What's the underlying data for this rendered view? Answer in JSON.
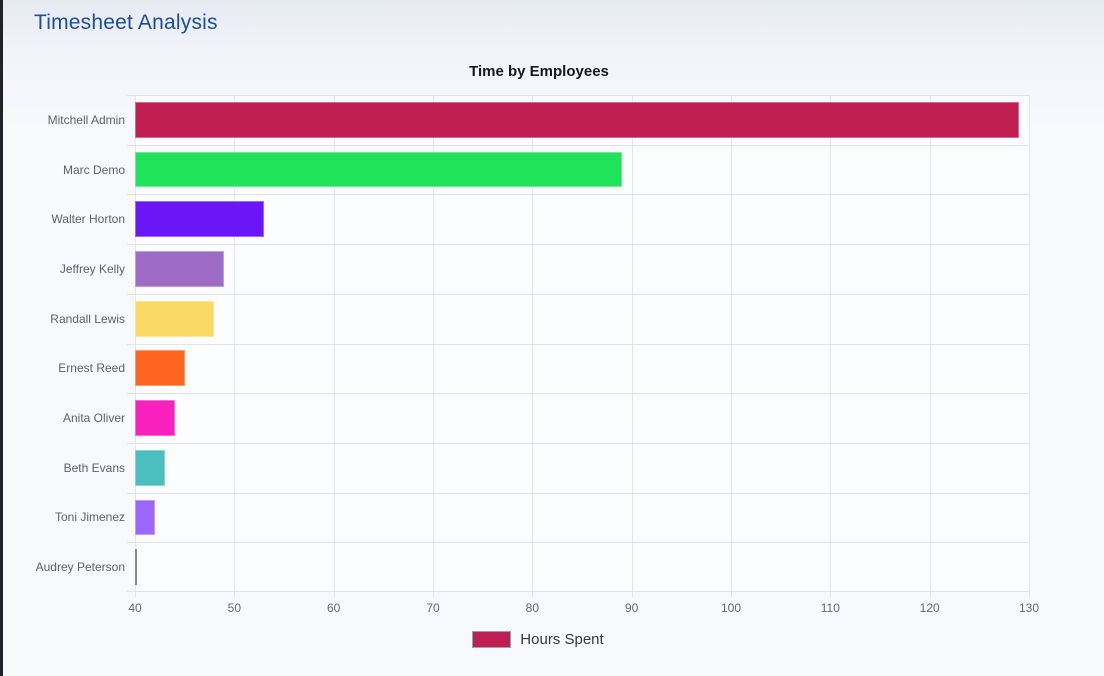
{
  "page": {
    "title": "Timesheet Analysis"
  },
  "colors": {
    "page_title": "#1a4d9e",
    "chart_title": "#15181e",
    "axis_label": "#5e6168",
    "tick_label": "#65686f",
    "legend_text": "#35383d",
    "plot_background": "#fcfdff",
    "gridline": "#e2e5ec",
    "window_edge": "#22232a",
    "legend_swatch": "#c01d52"
  },
  "chart_data": {
    "type": "bar",
    "orientation": "horizontal",
    "title": "Time by Employees",
    "xlabel": "",
    "ylabel": "",
    "grid": true,
    "legend_position": "bottom",
    "legend": [
      {
        "label": "Hours Spent",
        "color": "#c01d52"
      }
    ],
    "categories": [
      "Mitchell Admin",
      "Marc Demo",
      "Walter Horton",
      "Jeffrey Kelly",
      "Randall Lewis",
      "Ernest Reed",
      "Anita Oliver",
      "Beth Evans",
      "Toni Jimenez",
      "Audrey Peterson"
    ],
    "series": [
      {
        "name": "Hours Spent",
        "values": [
          129,
          89,
          53,
          49,
          48,
          45,
          44,
          43,
          42,
          40
        ]
      }
    ],
    "bar_colors": [
      "#c01d52",
      "#21e25b",
      "#6a16f7",
      "#9e6bc6",
      "#f9d963",
      "#ff6420",
      "#f920bd",
      "#4bbfc0",
      "#9b67fa",
      "#87878f"
    ],
    "xlim": [
      40,
      130
    ],
    "xticks": [
      40,
      50,
      60,
      70,
      80,
      90,
      100,
      110,
      120,
      130
    ]
  }
}
